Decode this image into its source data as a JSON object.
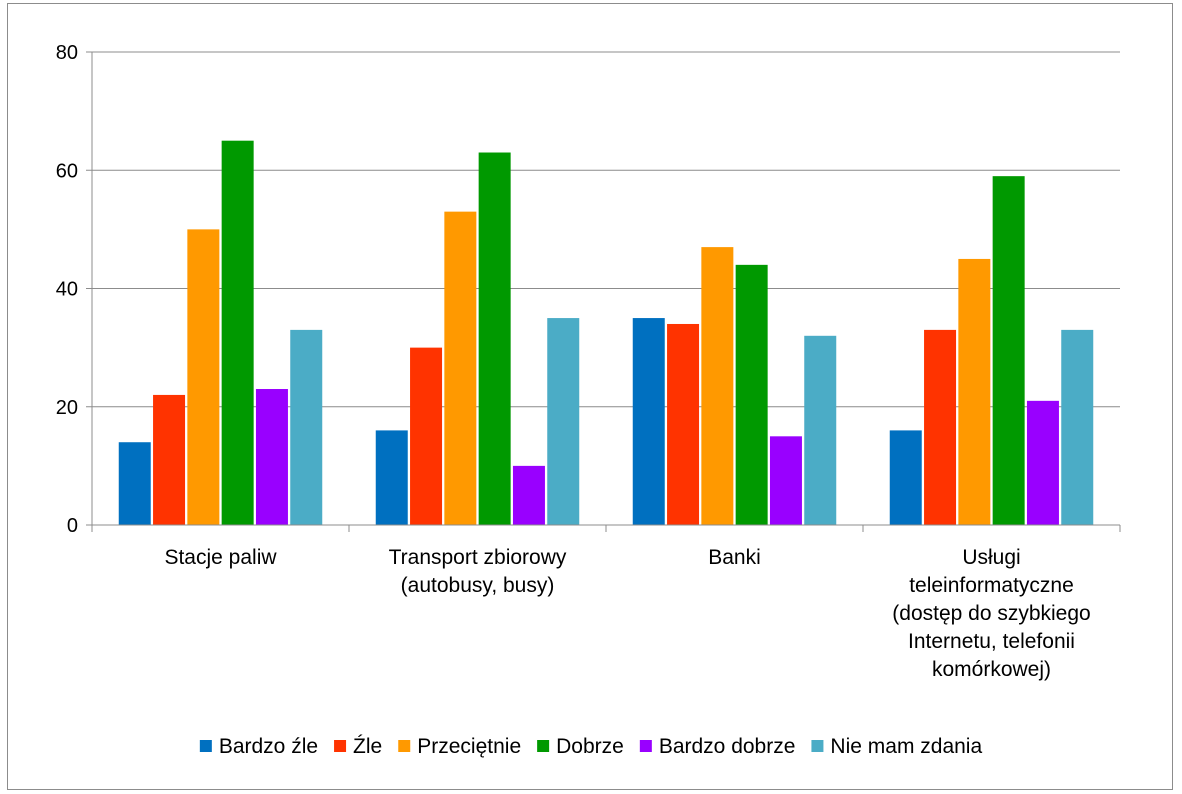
{
  "chart_data": {
    "type": "bar",
    "title": "",
    "xlabel": "",
    "ylabel": "",
    "ylim": [
      0,
      80
    ],
    "yticks": [
      0,
      20,
      40,
      60,
      80
    ],
    "grid": true,
    "legend_position": "bottom",
    "categories": [
      [
        "Stacje paliw"
      ],
      [
        "Transport zbiorowy",
        "(autobusy, busy)"
      ],
      [
        "Banki"
      ],
      [
        "Usługi",
        "teleinformatyczne",
        "(dostęp do szybkiego",
        "Internetu, telefonii",
        "komórkowej)"
      ]
    ],
    "series": [
      {
        "name": "Bardzo źle",
        "color": "#0070C0",
        "values": [
          14,
          16,
          35,
          16
        ]
      },
      {
        "name": "Źle",
        "color": "#FF3300",
        "values": [
          22,
          30,
          34,
          33
        ]
      },
      {
        "name": "Przeciętnie",
        "color": "#FF9900",
        "values": [
          50,
          53,
          47,
          45
        ]
      },
      {
        "name": "Dobrze",
        "color": "#009900",
        "values": [
          65,
          63,
          44,
          59
        ]
      },
      {
        "name": "Bardzo dobrze",
        "color": "#9900FF",
        "values": [
          23,
          10,
          15,
          21
        ]
      },
      {
        "name": "Nie mam zdania",
        "color": "#4BACC6",
        "values": [
          33,
          35,
          32,
          33
        ]
      }
    ]
  }
}
